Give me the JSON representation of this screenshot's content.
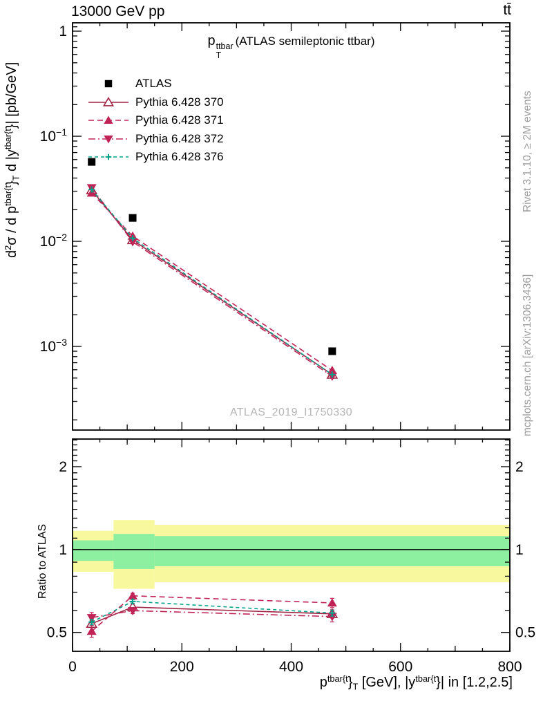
{
  "header": {
    "left": "13000 GeV pp",
    "right": "tt̄"
  },
  "plot_title": {
    "p": "p",
    "sup": "ttbar",
    "sub": "T",
    "rest": "(ATLAS semileptonic ttbar)"
  },
  "watermark": "ATLAS_2019_I1750330",
  "side_notes": {
    "top": "Rivet 3.1.10, ≥ 2M events",
    "bottom": "mcplots.cern.ch [arXiv:1306.3436]"
  },
  "ratio_label": "Ratio to ATLAS",
  "ylabel_parts": [
    {
      "t": "d"
    },
    {
      "t": "2",
      "s": "sup"
    },
    {
      "t": "σ / d p"
    },
    {
      "t": "tbar{t",
      "s": "sup"
    },
    {
      "t": "}"
    },
    {
      "t": "T",
      "s": "sub"
    },
    {
      "t": " d |y"
    },
    {
      "t": "tbar{t",
      "s": "sup"
    },
    {
      "t": "}| [pb/GeV]"
    }
  ],
  "xlabel_parts": [
    {
      "t": "p"
    },
    {
      "t": "tbar{t",
      "s": "sup"
    },
    {
      "t": "}"
    },
    {
      "t": "T",
      "s": "sub"
    },
    {
      "t": " [GeV], |y"
    },
    {
      "t": "tbar{t",
      "s": "sup"
    },
    {
      "t": "}| in [1.2,2.5]"
    }
  ],
  "chart_data": {
    "type": "line",
    "title": "pT^ttbar (ATLAS semileptonic ttbar)",
    "x": [
      35,
      110,
      475
    ],
    "xlim": [
      0,
      800
    ],
    "x_major_ticks": [
      0,
      200,
      400,
      600,
      800
    ],
    "x_tick_labels": [
      "0",
      "200",
      "400",
      "600",
      "800"
    ],
    "x_medium_step": 100,
    "x_minor_step": 50,
    "main_panel": {
      "yscale": "log",
      "ylim": [
        0.00016,
        1.2
      ],
      "ytick_exponents": [
        0,
        -1,
        -2,
        -3
      ],
      "ylabel": "d2sigma / d pT_tbart d |y_tbart| [pb/GeV]"
    },
    "ratio_panel": {
      "yscale": "log",
      "ylim": [
        0.427,
        2.52
      ],
      "yticks": [
        2,
        1,
        0.5
      ],
      "ytick_labels": [
        "2",
        "1",
        "0.5"
      ],
      "label": "Ratio to ATLAS",
      "bands": [
        {
          "x0": 0,
          "x1": 75,
          "yellow": [
            0.83,
            1.17
          ],
          "green": [
            0.91,
            1.08
          ]
        },
        {
          "x0": 75,
          "x1": 150,
          "yellow": [
            0.72,
            1.28
          ],
          "green": [
            0.85,
            1.14
          ]
        },
        {
          "x0": 150,
          "x1": 800,
          "yellow": [
            0.76,
            1.23
          ],
          "green": [
            0.87,
            1.12
          ]
        }
      ],
      "band_colors": {
        "yellow": "#f8f89e",
        "green": "#8cf0a0"
      }
    },
    "series": [
      {
        "label": "ATLAS",
        "color": "#000000",
        "marker": "square",
        "line": "none",
        "values": [
          0.057,
          0.0167,
          0.0009
        ]
      },
      {
        "label": "Pythia 6.428 370",
        "color": "#a12445",
        "marker": "triangle-open",
        "line": "solid",
        "values": [
          0.0307,
          0.0103,
          0.00054
        ],
        "ratio": [
          0.538,
          0.618,
          0.584
        ],
        "ratio_err": [
          0.015,
          0.01,
          0.02
        ]
      },
      {
        "label": "Pythia 6.428 371",
        "color": "#c02355",
        "marker": "triangle-up",
        "line": "dash",
        "values": [
          0.0288,
          0.0112,
          0.00059
        ],
        "ratio": [
          0.505,
          0.679,
          0.64
        ],
        "ratio_err": [
          0.025,
          0.015,
          0.025
        ]
      },
      {
        "label": "Pythia 6.428 372",
        "color": "#c02355",
        "marker": "triangle-down",
        "line": "dashdot",
        "values": [
          0.0323,
          0.0099,
          0.00052
        ],
        "ratio": [
          0.566,
          0.6,
          0.571
        ],
        "ratio_err": [
          0.025,
          0.015,
          0.025
        ]
      },
      {
        "label": "Pythia 6.428 376",
        "color": "#00a28a",
        "marker": "plus",
        "line": "shortdash",
        "values": [
          0.0311,
          0.0107,
          0.00054
        ],
        "ratio": [
          0.545,
          0.648,
          0.588
        ],
        "ratio_err": [
          0.012,
          0.01,
          0.015
        ]
      }
    ]
  }
}
